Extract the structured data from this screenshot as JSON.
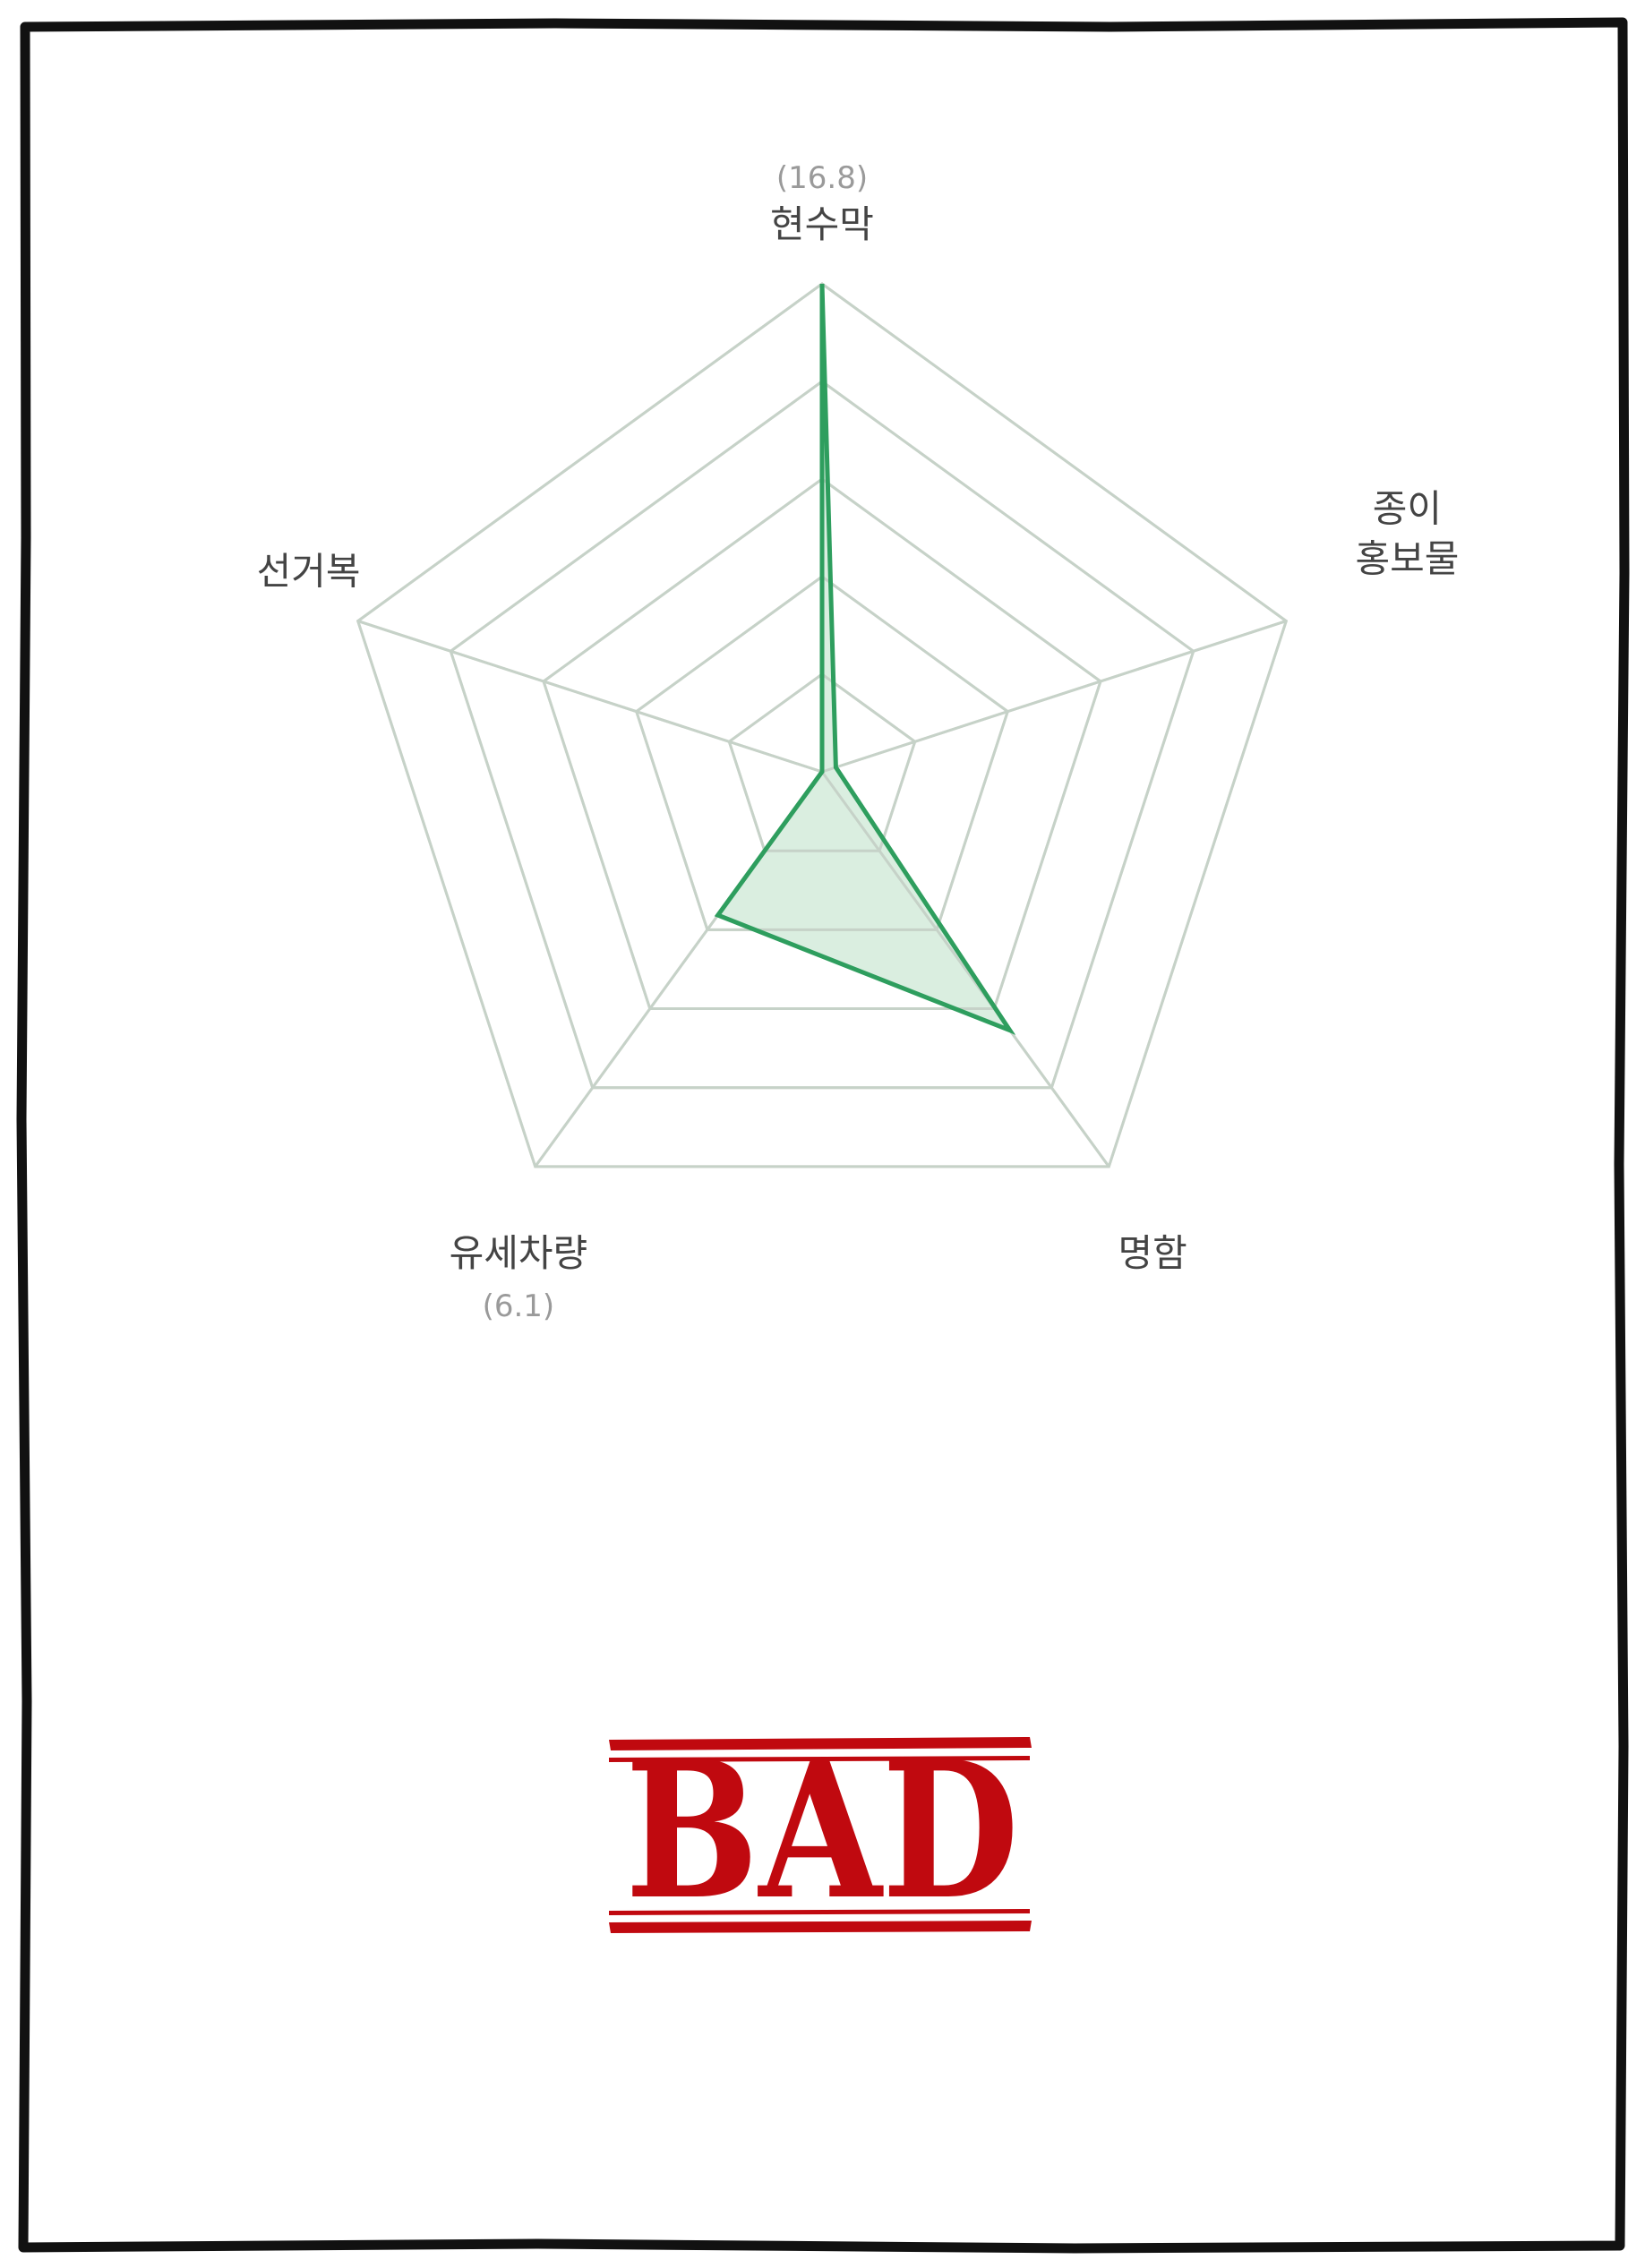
{
  "chart_data": {
    "type": "radar",
    "axes": [
      "현수막",
      "종이 홍보물",
      "명함",
      "유세차량",
      "선거복"
    ],
    "axis_label_lines": [
      [
        "현수막"
      ],
      [
        "종이",
        "홍보물"
      ],
      [
        "명함"
      ],
      [
        "유세차량"
      ],
      [
        "선거복"
      ]
    ],
    "values": [
      16.8,
      0.5,
      11.0,
      6.1,
      0.0
    ],
    "value_labels": {
      "0": "(16.8)",
      "3": "(6.1)"
    },
    "rmax": 16.8,
    "rings": 5,
    "series_color": "#2e9e5e",
    "fill_color": "#d6ecdd",
    "grid_color": "#d3d3cc"
  },
  "stamp": {
    "text": "BAD",
    "color": "#c0090f"
  },
  "frame": {
    "color": "#111111"
  }
}
